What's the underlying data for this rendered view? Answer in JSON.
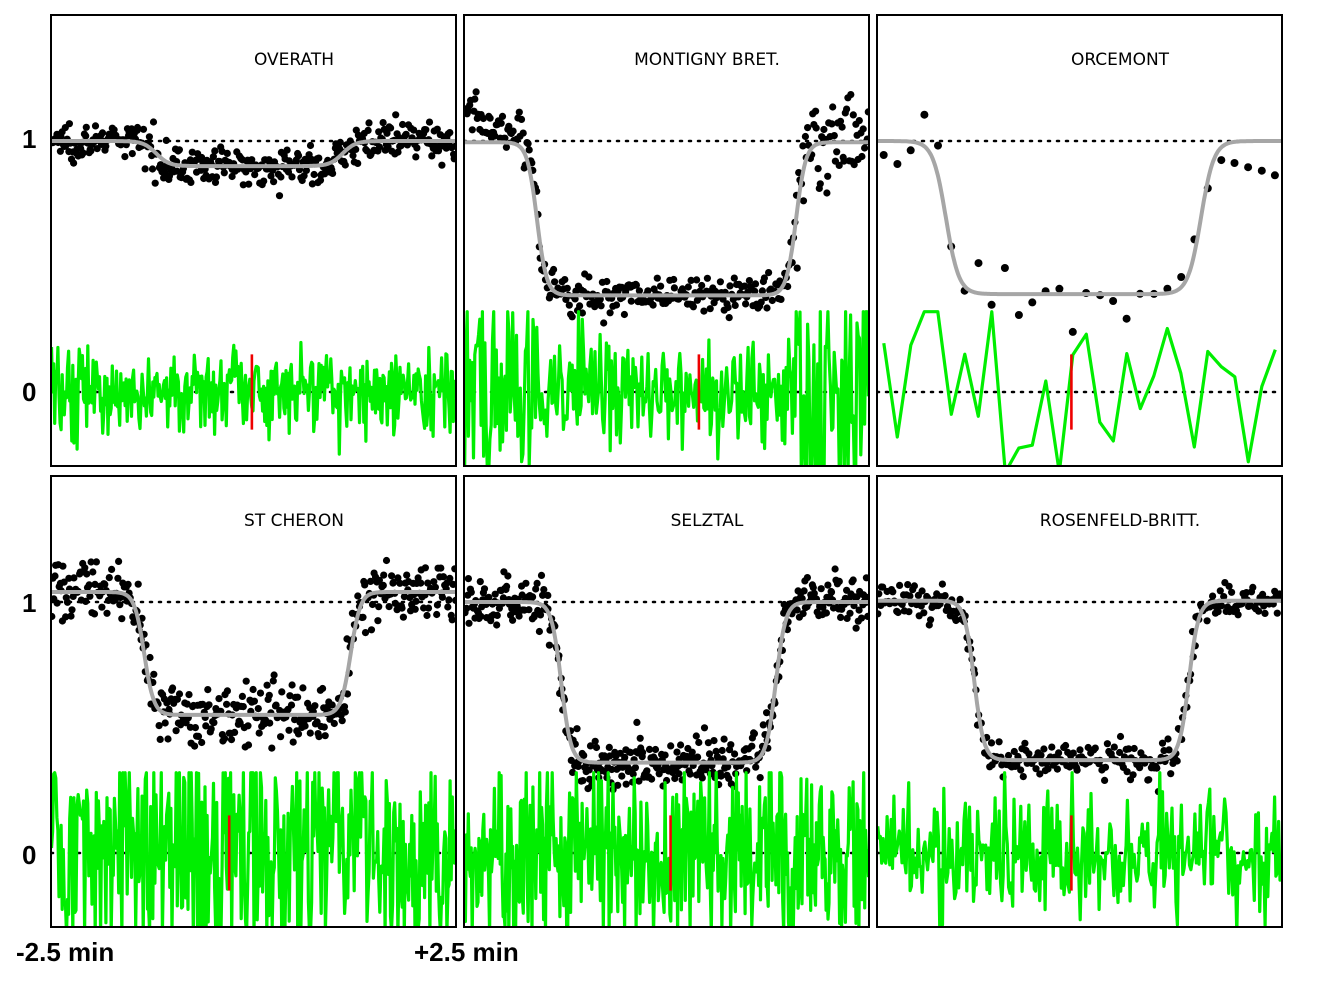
{
  "chart_data": {
    "type": "scatter",
    "layout": "2x3 small multiples",
    "y_ticks": [
      {
        "value": 1,
        "label": "1"
      },
      {
        "value": 0,
        "label": "0"
      }
    ],
    "x_range_labels": {
      "start": "-2.5 min",
      "end": "+2.5 min"
    },
    "x_range_min": [
      -2.5,
      2.5
    ],
    "reference_lines": [
      1,
      0
    ],
    "colors": {
      "points": "#000000",
      "model": "#a6a6a6",
      "residuals": "#00ee00",
      "center_marker": "#ee0000",
      "reference": "#000000"
    },
    "panels": [
      {
        "title": "OVERATH",
        "baseline": 1.0,
        "depth": 0.9,
        "ingress": -1.2,
        "egress": 1.1,
        "edge_width": 0.08,
        "point_scatter": 0.035,
        "n_points": 380,
        "residual_scatter": 0.035,
        "n_residual": 380,
        "center": -0.02,
        "jumps": false,
        "right_noise": false
      },
      {
        "title": "MONTIGNY BRET.",
        "baseline": 0.995,
        "depth": 0.385,
        "ingress": -1.6,
        "egress": 1.6,
        "edge_width": 0.06,
        "point_scatter": 0.04,
        "n_points": 320,
        "residual_scatter": 0.05,
        "n_residual": 320,
        "center": 0.4,
        "jumps": true,
        "right_noise": true
      },
      {
        "title": "ORCEMONT",
        "baseline": 1.0,
        "depth": 0.39,
        "ingress": -1.65,
        "egress": 1.5,
        "edge_width": 0.08,
        "point_scatter": 0.09,
        "n_points": 30,
        "residual_scatter": 0.09,
        "n_residual": 30,
        "center": -0.1,
        "jumps": false,
        "right_noise": false
      },
      {
        "title": "ST CHERON",
        "baseline": 1.04,
        "depth": 0.55,
        "ingress": -1.35,
        "egress": 1.2,
        "edge_width": 0.06,
        "point_scatter": 0.06,
        "n_points": 380,
        "residual_scatter": 0.1,
        "n_residual": 380,
        "center": -0.3,
        "jumps": false,
        "right_noise": false
      },
      {
        "title": "SELZTAL",
        "baseline": 1.0,
        "depth": 0.36,
        "ingress": -1.3,
        "egress": 1.35,
        "edge_width": 0.06,
        "point_scatter": 0.05,
        "n_points": 420,
        "residual_scatter": 0.08,
        "n_residual": 420,
        "center": 0.05,
        "jumps": false,
        "right_noise": false
      },
      {
        "title": "ROSENFELD-BRITT.",
        "baseline": 1.005,
        "depth": 0.37,
        "ingress": -1.3,
        "egress": 1.35,
        "edge_width": 0.06,
        "point_scatter": 0.035,
        "n_points": 300,
        "residual_scatter": 0.05,
        "n_residual": 300,
        "center": -0.1,
        "jumps": false,
        "right_noise": false
      }
    ]
  }
}
